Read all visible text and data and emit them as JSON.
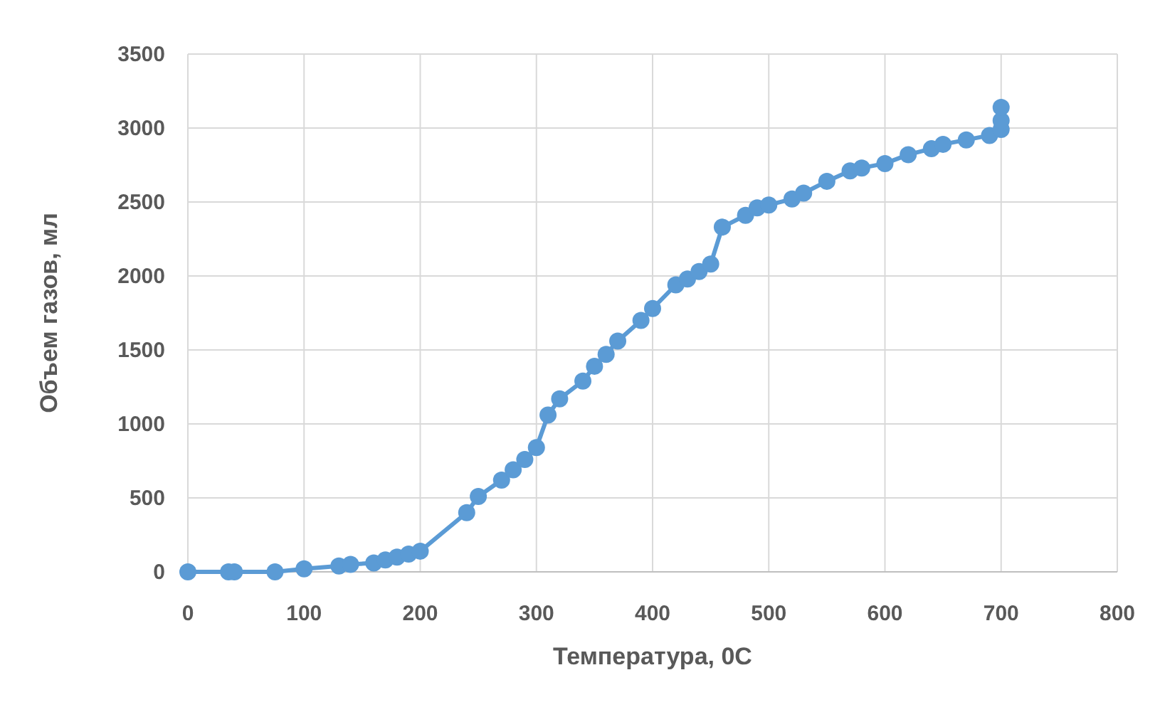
{
  "chart_data": {
    "type": "line",
    "xlabel": "Температура, 0С",
    "ylabel": "Объем газов, мл",
    "series": [
      {
        "color": "#5b9bd5",
        "x": [
          0,
          35,
          40,
          75,
          100,
          130,
          140,
          160,
          170,
          180,
          190,
          200,
          240,
          250,
          270,
          280,
          290,
          300,
          310,
          320,
          340,
          350,
          360,
          370,
          390,
          400,
          420,
          430,
          440,
          450,
          460,
          480,
          490,
          500,
          520,
          530,
          550,
          570,
          580,
          600,
          620,
          640,
          650,
          670,
          690,
          700,
          700,
          700
        ],
        "values": [
          0,
          0,
          0,
          0,
          20,
          40,
          50,
          60,
          80,
          100,
          120,
          140,
          400,
          510,
          620,
          690,
          760,
          840,
          1060,
          1170,
          1290,
          1390,
          1470,
          1560,
          1700,
          1780,
          1940,
          1980,
          2030,
          2080,
          2330,
          2410,
          2460,
          2480,
          2520,
          2560,
          2640,
          2710,
          2730,
          2760,
          2820,
          2860,
          2890,
          2920,
          2950,
          2990,
          3050,
          3140
        ]
      }
    ],
    "xlim": [
      0,
      800
    ],
    "xticks": [
      0,
      100,
      200,
      300,
      400,
      500,
      600,
      700,
      800
    ],
    "ylim": [
      0,
      3500
    ],
    "yticks": [
      0,
      500,
      1000,
      1500,
      2000,
      2500,
      3000,
      3500
    ],
    "grid": true,
    "marker": "circle",
    "line_style": "solid"
  }
}
